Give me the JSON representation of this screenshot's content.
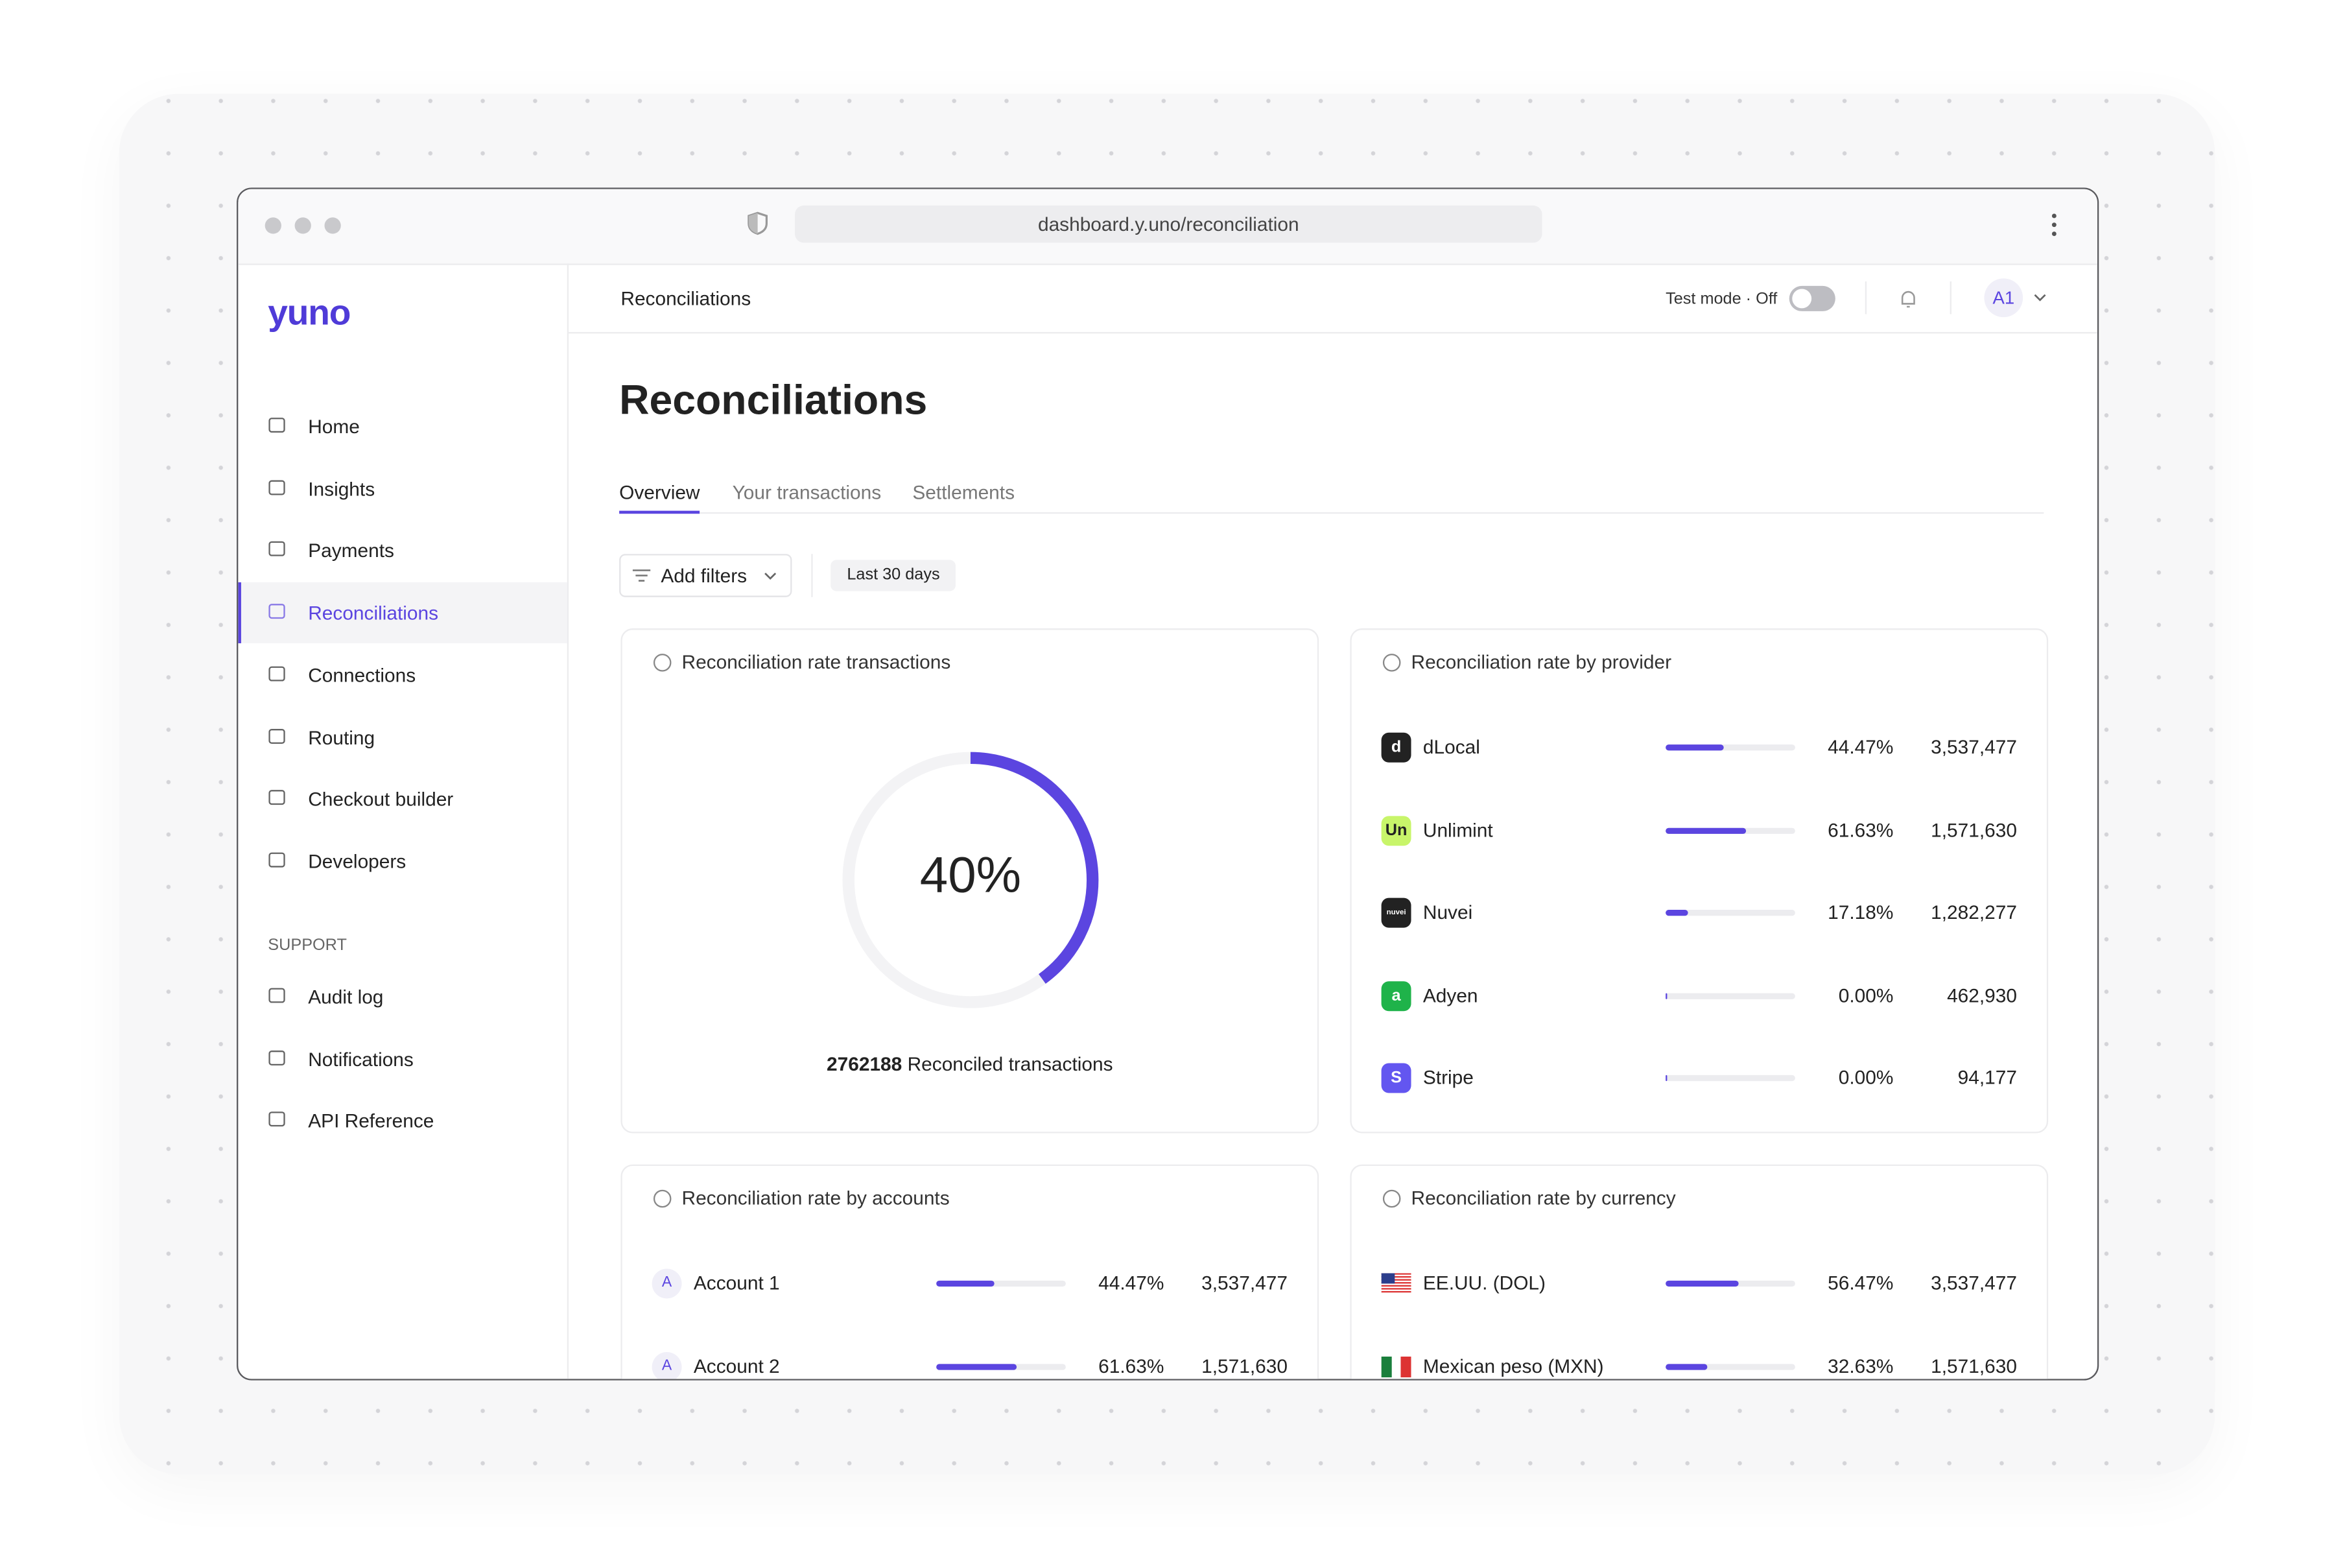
{
  "browser": {
    "url": "dashboard.y.uno/reconciliation"
  },
  "sidebar": {
    "logo": "yuno",
    "nav": [
      "Home",
      "Insights",
      "Payments",
      "Reconciliations",
      "Connections",
      "Routing",
      "Checkout builder",
      "Developers"
    ],
    "support_heading": "SUPPORT",
    "support": [
      "Audit log",
      "Notifications",
      "API Reference"
    ]
  },
  "header": {
    "breadcrumb": "Reconciliations",
    "test_mode": "Test mode · Off",
    "avatar": "A1"
  },
  "page": {
    "title": "Reconciliations",
    "tabs": [
      "Overview",
      "Your transactions",
      "Settlements"
    ],
    "filters": {
      "add": "Add filters",
      "range": "Last 30 days"
    }
  },
  "rate_card": {
    "title": "Reconciliation rate transactions",
    "percent": "40%",
    "count": "2762188",
    "count_text": "Reconciled transactions"
  },
  "provider_card": {
    "title": "Reconciliation rate by provider",
    "rows": [
      {
        "name": "dLocal",
        "rate": "44.47%",
        "count": "3,537,477"
      },
      {
        "name": "Unlimint",
        "rate": "61.63%",
        "count": "1,571,630"
      },
      {
        "name": "Nuvei",
        "rate": "17.18%",
        "count": "1,282,277"
      },
      {
        "name": "Adyen",
        "rate": "0.00%",
        "count": "462,930"
      },
      {
        "name": "Stripe",
        "rate": "0.00%",
        "count": "94,177"
      }
    ]
  },
  "accounts_card": {
    "title": "Reconciliation rate by accounts",
    "rows": [
      {
        "badge": "A",
        "name": "Account 1",
        "rate": "44.47%",
        "count": "3,537,477"
      },
      {
        "badge": "A",
        "name": "Account 2",
        "rate": "61.63%",
        "count": "1,571,630"
      }
    ]
  },
  "currency_card": {
    "title": "Reconciliation rate by currency",
    "rows": [
      {
        "name": "EE.UU. (DOL)",
        "rate": "56.47%",
        "count": "3,537,477"
      },
      {
        "name": "Mexican peso (MXN)",
        "rate": "32.63%",
        "count": "1,571,630"
      }
    ]
  }
}
